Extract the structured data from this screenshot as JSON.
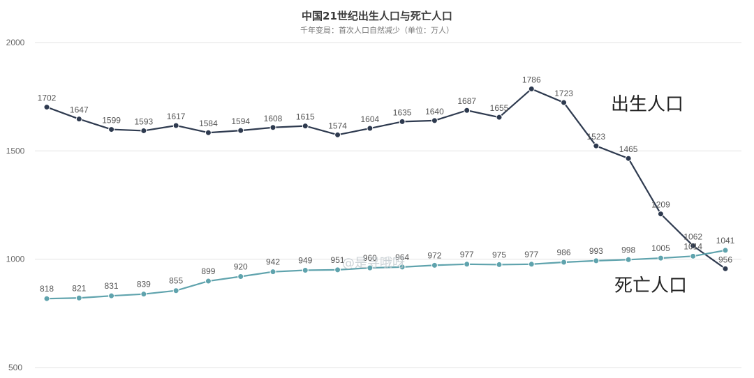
{
  "chart_data": {
    "type": "line",
    "title": "中国21世纪出生人口与死亡人口",
    "subtitle": "千年变局：首次人口自然减少（单位：万人）",
    "y_ticks": [
      "2000",
      "1500",
      "1000",
      "500"
    ],
    "ylim": [
      500,
      2000
    ],
    "grid": true,
    "legend": "inline-right",
    "series": [
      {
        "name": "出生人口",
        "color": "#2e3a4f",
        "values": [
          1702,
          1647,
          1599,
          1593,
          1617,
          1584,
          1594,
          1608,
          1615,
          1574,
          1604,
          1635,
          1640,
          1687,
          1655,
          1786,
          1723,
          1523,
          1465,
          1209,
          1062,
          956
        ],
        "labels": [
          "1702",
          "1647",
          "1599",
          "1593",
          "1617",
          "1584",
          "1594",
          "1608",
          "1615",
          "1574",
          "1604",
          "1635",
          "1640",
          "1687",
          "1655",
          "1786",
          "1723",
          "1523",
          "1465",
          "1209",
          "1062",
          "956"
        ]
      },
      {
        "name": "死亡人口",
        "color": "#5fa3ad",
        "values": [
          818,
          821,
          831,
          839,
          855,
          899,
          920,
          942,
          949,
          951,
          960,
          964,
          972,
          977,
          975,
          977,
          986,
          993,
          998,
          1005,
          1014,
          1041
        ],
        "labels": [
          "818",
          "821",
          "831",
          "839",
          "855",
          "899",
          "920",
          "942",
          "949",
          "951",
          "960",
          "964",
          "972",
          "977",
          "975",
          "977",
          "986",
          "993",
          "998",
          "1005",
          "1014",
          "1041"
        ]
      }
    ],
    "watermark": "@是寻哦呀"
  }
}
